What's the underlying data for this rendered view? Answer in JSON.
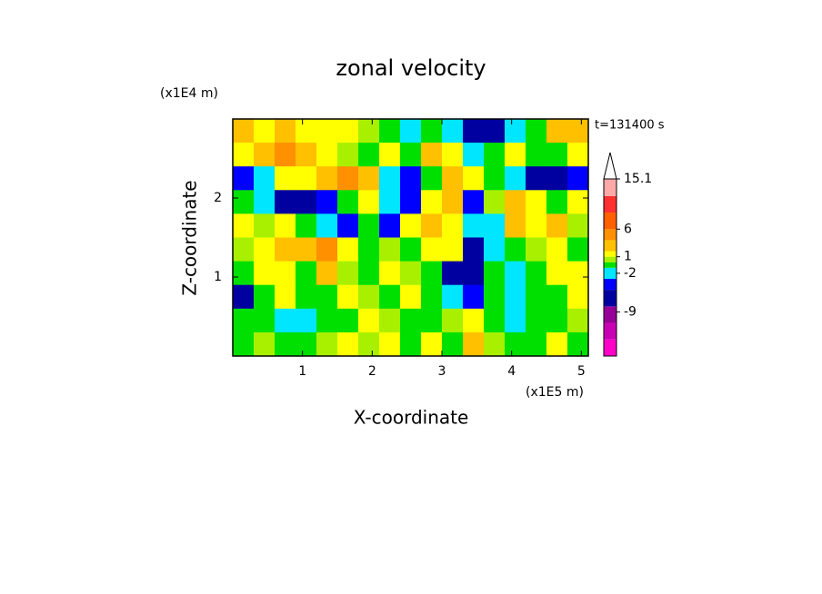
{
  "chart_data": {
    "type": "contour",
    "title": "zonal velocity",
    "x_label": "X-coordinate",
    "y_label": "Z-coordinate",
    "x_unit": "(x1E5 m)",
    "y_unit": "(x1E4 m)",
    "annotation": "t=131400 s",
    "xlim": [
      0,
      5.1
    ],
    "ylim": [
      0,
      3
    ],
    "xticks": [
      1,
      2,
      3,
      4,
      5
    ],
    "yticks": [
      1,
      2
    ],
    "x": [
      0.15,
      0.45,
      0.75,
      1.05,
      1.35,
      1.65,
      1.95,
      2.25,
      2.55,
      2.85,
      3.15,
      3.45,
      3.75,
      4.05,
      4.35,
      4.65,
      4.95
    ],
    "y": [
      2.85,
      2.55,
      2.25,
      1.95,
      1.65,
      1.35,
      1.05,
      0.75,
      0.45,
      0.15
    ],
    "z": [
      [
        3,
        1.5,
        3,
        1.5,
        1.5,
        1.5,
        0.5,
        -0.5,
        -2,
        -0.5,
        -2,
        -6,
        -6,
        -2,
        -0.5,
        3,
        3
      ],
      [
        1.5,
        3,
        5,
        3,
        1.5,
        0.5,
        -0.5,
        1.5,
        -0.5,
        3,
        1.5,
        -2,
        -0.5,
        1.5,
        -0.5,
        -0.5,
        1.5
      ],
      [
        -4,
        -2,
        1.5,
        1.5,
        3,
        5,
        3,
        -2,
        -4,
        -0.5,
        3,
        1.5,
        -0.5,
        -2,
        -6,
        -6,
        -4
      ],
      [
        -0.5,
        -2,
        -6,
        -6,
        -4,
        -0.5,
        1.5,
        -2,
        -4,
        1.5,
        3,
        -4,
        0.5,
        3,
        1.5,
        -0.5,
        1.5
      ],
      [
        1.5,
        0.5,
        1.5,
        -0.5,
        -2,
        -4,
        -0.5,
        -4,
        1.5,
        3,
        1.5,
        -2,
        -2,
        3,
        1.5,
        3,
        0.5
      ],
      [
        0.5,
        1.5,
        3,
        3,
        5,
        1.5,
        -0.5,
        0.5,
        -0.5,
        1.5,
        1.5,
        -6,
        -2,
        -0.5,
        0.5,
        1.5,
        -0.5
      ],
      [
        -0.5,
        1.5,
        1.5,
        -0.5,
        3,
        0.5,
        -0.5,
        1.5,
        0.5,
        -0.5,
        -6,
        -6,
        -0.5,
        -2,
        -0.5,
        1.5,
        1.5
      ],
      [
        -6,
        -0.5,
        1.5,
        -0.5,
        -0.5,
        1.5,
        0.5,
        -0.5,
        1.5,
        -0.5,
        -2,
        -4,
        -0.5,
        -2,
        -0.5,
        -0.5,
        1.5
      ],
      [
        -0.5,
        -0.5,
        -2,
        -2,
        -0.5,
        -0.5,
        1.5,
        0.5,
        -0.5,
        -0.5,
        0.5,
        1.5,
        -0.5,
        -2,
        -0.5,
        -0.5,
        0.5
      ],
      [
        -0.5,
        0.5,
        -0.5,
        -0.5,
        0.5,
        1.5,
        0.5,
        1.5,
        -0.5,
        1.5,
        -0.5,
        3,
        0.5,
        -0.5,
        -0.5,
        1.5,
        -0.5
      ]
    ],
    "levels": [
      -17,
      -14,
      -11,
      -8,
      -5,
      -3,
      -1,
      0,
      1,
      2,
      4,
      6,
      9,
      12,
      15.1
    ],
    "colors": [
      "#ff00c8",
      "#c800b4",
      "#960096",
      "#0000a0",
      "#0000ff",
      "#00e6ff",
      "#00e000",
      "#a8f000",
      "#ffff00",
      "#ffc000",
      "#ff9000",
      "#ff6000",
      "#ff3030",
      "#ffa8a8"
    ],
    "clim": [
      -17,
      15.1
    ],
    "cticks": [
      15.1,
      6,
      1,
      -2,
      -9
    ]
  }
}
